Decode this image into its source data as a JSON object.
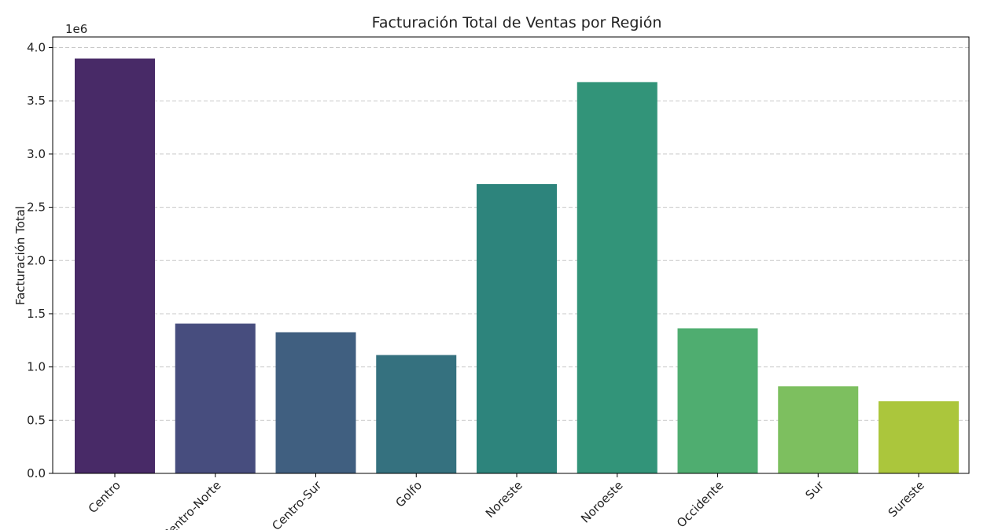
{
  "chart_data": {
    "type": "bar",
    "title": "Facturación Total de Ventas por Región",
    "xlabel": "",
    "ylabel": "Facturación Total",
    "y_offset_label": "1e6",
    "categories": [
      "Centro",
      "Centro-Norte",
      "Centro-Sur",
      "Golfo",
      "Noreste",
      "Noroeste",
      "Occidente",
      "Sur",
      "Sureste"
    ],
    "values": [
      3897000,
      1407000,
      1326000,
      1112000,
      2718000,
      3676000,
      1363000,
      818000,
      678000
    ],
    "colors": [
      "#482a67",
      "#474d7e",
      "#405f80",
      "#35717f",
      "#2d847c",
      "#329479",
      "#4fad70",
      "#7dbf5f",
      "#abc63c"
    ],
    "ylim": [
      0,
      4100000
    ],
    "yticks": [
      "0.0",
      "0.5",
      "1.0",
      "1.5",
      "2.0",
      "2.5",
      "3.0",
      "3.5",
      "4.0"
    ],
    "grid": "y dashed",
    "legend": "none"
  }
}
